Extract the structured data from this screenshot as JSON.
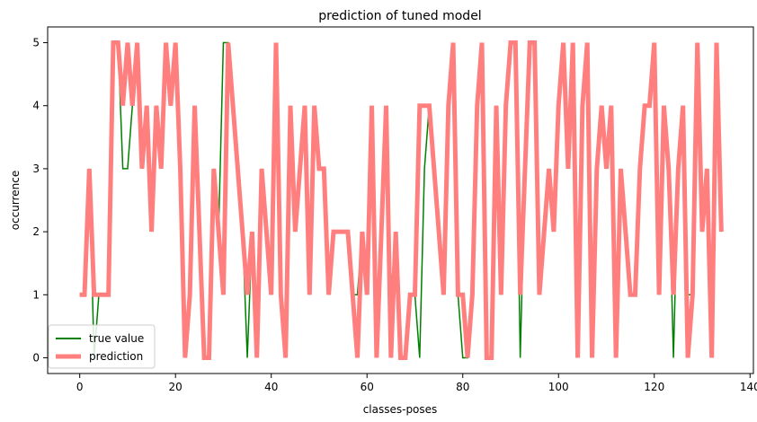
{
  "chart_data": {
    "type": "line",
    "title": "prediction of tuned model",
    "xlabel": "classes-poses",
    "ylabel": "occurrence",
    "xlim": [
      -6.7,
      140.7
    ],
    "ylim": [
      -0.25,
      5.25
    ],
    "xticks": [
      0,
      20,
      40,
      60,
      80,
      100,
      120,
      140
    ],
    "yticks": [
      0,
      1,
      2,
      3,
      4,
      5
    ],
    "grid": false,
    "legend_position": "lower-left",
    "series": [
      {
        "name": "true value",
        "color": "#008000",
        "x": [
          0,
          1,
          2,
          3,
          4,
          5,
          6,
          7,
          8,
          9,
          10,
          11,
          12,
          13,
          14,
          15,
          16,
          17,
          18,
          19,
          20,
          21,
          22,
          23,
          24,
          25,
          26,
          27,
          28,
          29,
          30,
          31,
          32,
          33,
          34,
          35,
          36,
          37,
          38,
          39,
          40,
          41,
          42,
          43,
          44,
          45,
          46,
          47,
          48,
          49,
          50,
          51,
          52,
          53,
          54,
          55,
          56,
          57,
          58,
          59,
          60,
          61,
          62,
          63,
          64,
          65,
          66,
          67,
          68,
          69,
          70,
          71,
          72,
          73,
          74,
          75,
          76,
          77,
          78,
          79,
          80,
          81,
          82,
          83,
          84,
          85,
          86,
          87,
          88,
          89,
          90,
          91,
          92,
          93,
          94,
          95,
          96,
          97,
          98,
          99,
          100,
          101,
          102,
          103,
          104,
          105,
          106,
          107,
          108,
          109,
          110,
          111,
          112,
          113,
          114,
          115,
          116,
          117,
          118,
          119,
          120,
          121,
          122,
          123,
          124,
          125,
          126,
          127,
          128,
          129,
          130,
          131,
          132,
          133,
          134
        ],
        "y": [
          1,
          1,
          3,
          0,
          1,
          1,
          1,
          5,
          5,
          3,
          3,
          4,
          5,
          3,
          4,
          2,
          4,
          3,
          5,
          4,
          5,
          3,
          0,
          1,
          4,
          2,
          0,
          0,
          3,
          2,
          5,
          5,
          4,
          3,
          2,
          0,
          2,
          0,
          3,
          2,
          1,
          5,
          1,
          0,
          4,
          2,
          3,
          4,
          1,
          4,
          3,
          3,
          1,
          2,
          2,
          2,
          2,
          1,
          1,
          2,
          1,
          4,
          0,
          2,
          4,
          1,
          2,
          0,
          0,
          1,
          1,
          0,
          3,
          4,
          3,
          2,
          1,
          4,
          5,
          1,
          0,
          0,
          1,
          4,
          5,
          0,
          0,
          4,
          1,
          4,
          5,
          5,
          0,
          3,
          5,
          5,
          1,
          2,
          3,
          2,
          4,
          5,
          3,
          5,
          0,
          4,
          5,
          0,
          3,
          4,
          3,
          4,
          0,
          3,
          2,
          1,
          1,
          3,
          4,
          4,
          5,
          1,
          4,
          3,
          0,
          3,
          4,
          1,
          1,
          5,
          2,
          3,
          0,
          5,
          2
        ]
      },
      {
        "name": "prediction",
        "color": "#ff7f7f",
        "x": [
          0,
          1,
          2,
          3,
          4,
          5,
          6,
          7,
          8,
          9,
          10,
          11,
          12,
          13,
          14,
          15,
          16,
          17,
          18,
          19,
          20,
          21,
          22,
          23,
          24,
          25,
          26,
          27,
          28,
          29,
          30,
          31,
          32,
          33,
          34,
          35,
          36,
          37,
          38,
          39,
          40,
          41,
          42,
          43,
          44,
          45,
          46,
          47,
          48,
          49,
          50,
          51,
          52,
          53,
          54,
          55,
          56,
          57,
          58,
          59,
          60,
          61,
          62,
          63,
          64,
          65,
          66,
          67,
          68,
          69,
          70,
          71,
          72,
          73,
          74,
          75,
          76,
          77,
          78,
          79,
          80,
          81,
          82,
          83,
          84,
          85,
          86,
          87,
          88,
          89,
          90,
          91,
          92,
          93,
          94,
          95,
          96,
          97,
          98,
          99,
          100,
          101,
          102,
          103,
          104,
          105,
          106,
          107,
          108,
          109,
          110,
          111,
          112,
          113,
          114,
          115,
          116,
          117,
          118,
          119,
          120,
          121,
          122,
          123,
          124,
          125,
          126,
          127,
          128,
          129,
          130,
          131,
          132,
          133,
          134
        ],
        "y": [
          1,
          1,
          3,
          1,
          1,
          1,
          1,
          5,
          5,
          4,
          5,
          4,
          5,
          3,
          4,
          2,
          4,
          3,
          5,
          4,
          5,
          3,
          0,
          1,
          4,
          2,
          0,
          0,
          3,
          2,
          1,
          5,
          4,
          3,
          2,
          1,
          2,
          0,
          3,
          2,
          1,
          5,
          1,
          0,
          4,
          2,
          3,
          4,
          1,
          4,
          3,
          3,
          1,
          2,
          2,
          2,
          2,
          1,
          0,
          2,
          1,
          4,
          0,
          2,
          4,
          0,
          2,
          0,
          0,
          1,
          1,
          4,
          4,
          4,
          3,
          2,
          1,
          4,
          5,
          1,
          1,
          0,
          1,
          4,
          5,
          0,
          0,
          4,
          1,
          4,
          5,
          5,
          1,
          3,
          5,
          5,
          1,
          2,
          3,
          2,
          4,
          5,
          3,
          5,
          0,
          4,
          5,
          0,
          3,
          4,
          3,
          4,
          0,
          3,
          2,
          1,
          1,
          3,
          4,
          4,
          5,
          1,
          4,
          3,
          1,
          3,
          4,
          0,
          1,
          5,
          2,
          3,
          0,
          5,
          2
        ]
      }
    ]
  }
}
